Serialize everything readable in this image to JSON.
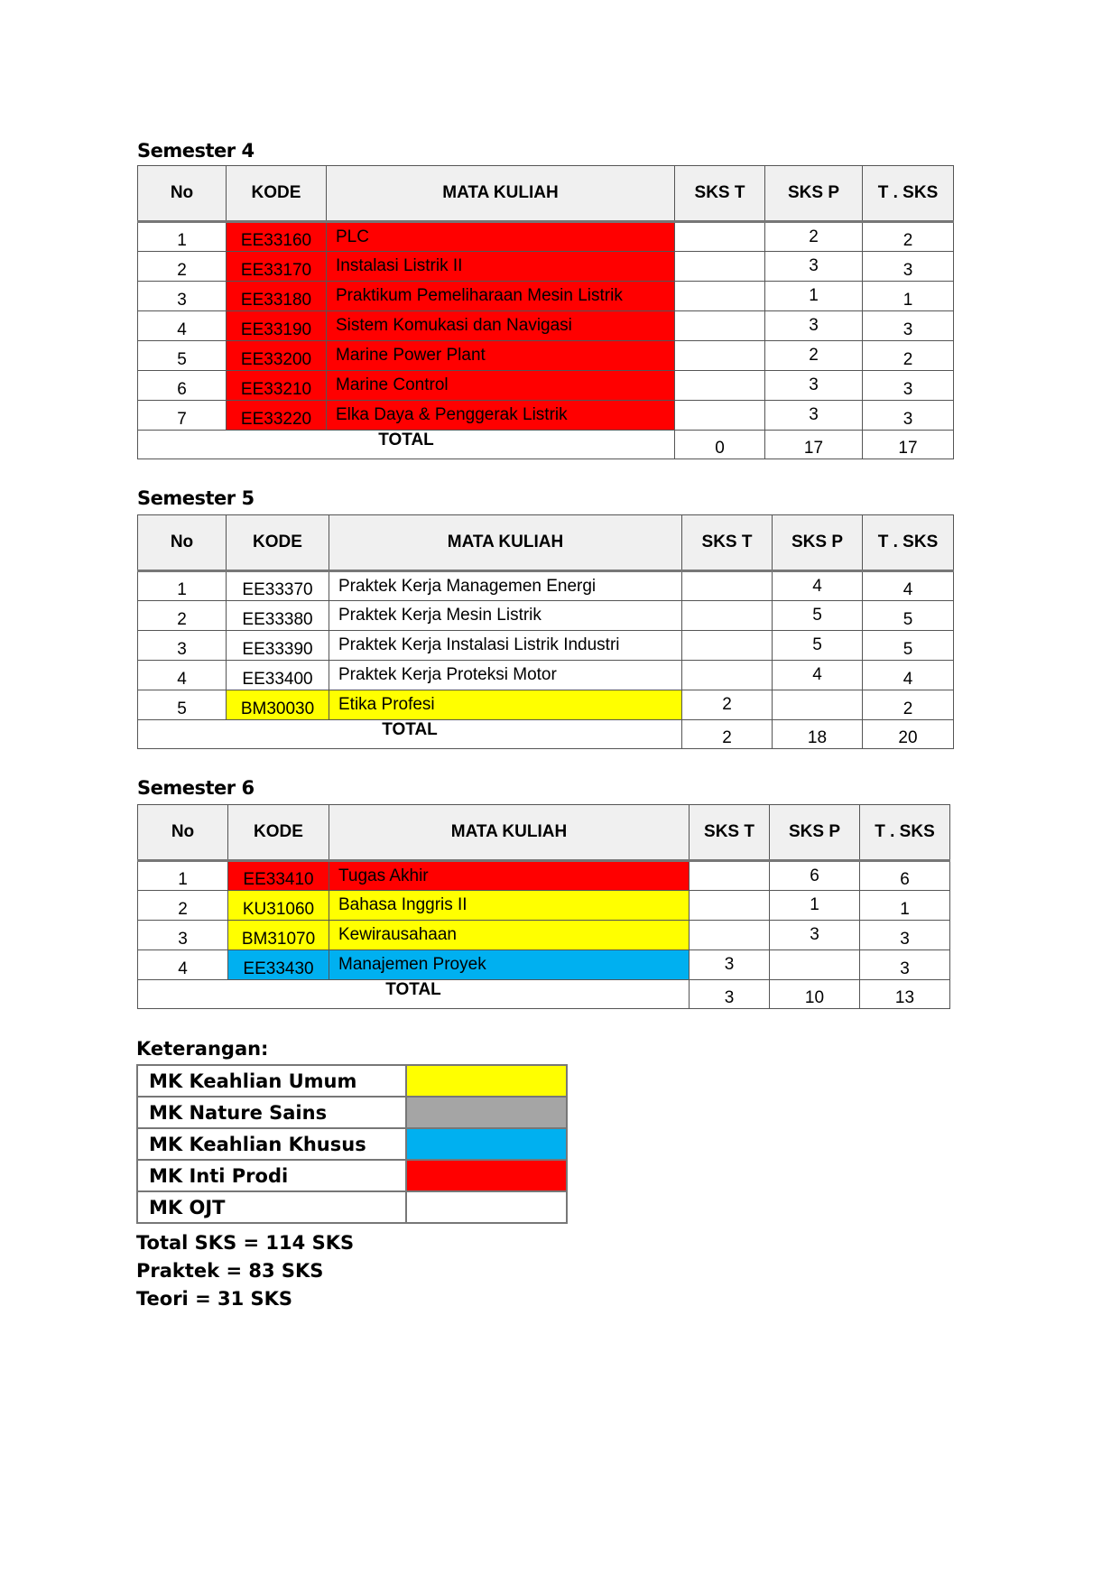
{
  "headers": {
    "no": "No",
    "kode": "KODE",
    "mk": "MATA  KULIAH",
    "skst": "SKS T",
    "sksp": "SKS P",
    "tsks": "T . SKS",
    "total": "TOTAL"
  },
  "colors": {
    "red": "#ff0000",
    "yellow": "#ffff00",
    "blue": "#00b0f0",
    "gray": "#a5a5a5"
  },
  "semesters": [
    {
      "title": "Semester 4",
      "rows": [
        {
          "no": "1",
          "kode": "EE33160",
          "mk": "PLC",
          "t": "",
          "p": "2",
          "total": "2",
          "color": "red"
        },
        {
          "no": "2",
          "kode": "EE33170",
          "mk": "Instalasi Listrik  II",
          "t": "",
          "p": "3",
          "total": "3",
          "color": "red"
        },
        {
          "no": "3",
          "kode": "EE33180",
          "mk": "Praktikum Pemeliharaan Mesin Listrik",
          "t": "",
          "p": "1",
          "total": "1",
          "color": "red"
        },
        {
          "no": "4",
          "kode": "EE33190",
          "mk": "Sistem Komukasi dan Navigasi",
          "t": "",
          "p": "3",
          "total": "3",
          "color": "red"
        },
        {
          "no": "5",
          "kode": "EE33200",
          "mk": "Marine Power Plant",
          "t": "",
          "p": "2",
          "total": "2",
          "color": "red"
        },
        {
          "no": "6",
          "kode": "EE33210",
          "mk": "Marine Control",
          "t": "",
          "p": "3",
          "total": "3",
          "color": "red"
        },
        {
          "no": "7",
          "kode": "EE33220",
          "mk": "Elka Daya & Penggerak Listrik",
          "t": "",
          "p": "3",
          "total": "3",
          "color": "red"
        }
      ],
      "totals": {
        "t": "0",
        "p": "17",
        "total": "17"
      }
    },
    {
      "title": "Semester 5",
      "rows": [
        {
          "no": "1",
          "kode": "EE33370",
          "mk": "Praktek Kerja Managemen Energi",
          "t": "",
          "p": "4",
          "total": "4",
          "color": ""
        },
        {
          "no": "2",
          "kode": "EE33380",
          "mk": "Praktek Kerja Mesin Listrik",
          "t": "",
          "p": "5",
          "total": "5",
          "color": ""
        },
        {
          "no": "3",
          "kode": "EE33390",
          "mk": "Praktek Kerja Instalasi Listrik Industri",
          "t": "",
          "p": "5",
          "total": "5",
          "color": ""
        },
        {
          "no": "4",
          "kode": "EE33400",
          "mk": "Praktek Kerja  Proteksi Motor",
          "t": "",
          "p": "4",
          "total": "4",
          "color": ""
        },
        {
          "no": "5",
          "kode": "BM30030",
          "mk": "Etika Profesi",
          "t": "2",
          "p": "",
          "total": "2",
          "color": "yellow"
        }
      ],
      "totals": {
        "t": "2",
        "p": "18",
        "total": "20"
      }
    },
    {
      "title": "Semester 6",
      "rows": [
        {
          "no": "1",
          "kode": "EE33410",
          "mk": "Tugas Akhir",
          "t": "",
          "p": "6",
          "total": "6",
          "color": "red"
        },
        {
          "no": "2",
          "kode": "KU31060",
          "mk": "Bahasa Inggris II",
          "t": "",
          "p": "1",
          "total": "1",
          "color": "yellow"
        },
        {
          "no": "3",
          "kode": "BM31070",
          "mk": "Kewirausahaan",
          "t": "",
          "p": "3",
          "total": "3",
          "color": "yellow"
        },
        {
          "no": "4",
          "kode": "EE33430",
          "mk": "Manajemen Proyek",
          "t": "3",
          "p": "",
          "total": "3",
          "color": "blue"
        }
      ],
      "totals": {
        "t": "3",
        "p": "10",
        "total": "13"
      }
    }
  ],
  "legend": {
    "title": "Keterangan:",
    "items": [
      {
        "label": "MK Keahlian Umum",
        "color": "yellow"
      },
      {
        "label": "MK Nature Sains",
        "color": "gray"
      },
      {
        "label": "MK Keahlian Khusus",
        "color": "blue"
      },
      {
        "label": "MK Inti Prodi",
        "color": "red"
      },
      {
        "label": "MK OJT",
        "color": ""
      }
    ]
  },
  "summary": [
    "Total SKS = 114 SKS",
    "Praktek = 83 SKS",
    "Teori = 31 SKS"
  ]
}
